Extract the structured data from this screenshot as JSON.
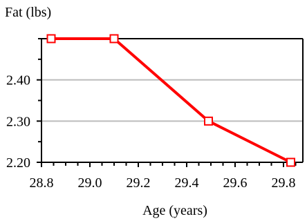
{
  "chart_data": {
    "type": "line",
    "title": "",
    "xlabel": "Age (years)",
    "ylabel": "Fat (lbs)",
    "xlim": [
      28.8,
      29.88
    ],
    "ylim": [
      2.2,
      2.5
    ],
    "x_ticks": [
      28.8,
      29.0,
      29.2,
      29.4,
      29.6,
      29.8
    ],
    "x_tick_labels": [
      "28.8",
      "29.0",
      "29.2",
      "29.4",
      "29.6",
      "29.8"
    ],
    "y_ticks": [
      2.2,
      2.3,
      2.4
    ],
    "y_tick_labels": [
      "2.20",
      "2.30",
      "2.40"
    ],
    "grid": true,
    "series": [
      {
        "color": "#ff0000",
        "marker": "open-square",
        "x": [
          28.84,
          29.1,
          29.49,
          29.83
        ],
        "y": [
          2.5,
          2.5,
          2.3,
          2.2
        ]
      }
    ]
  }
}
